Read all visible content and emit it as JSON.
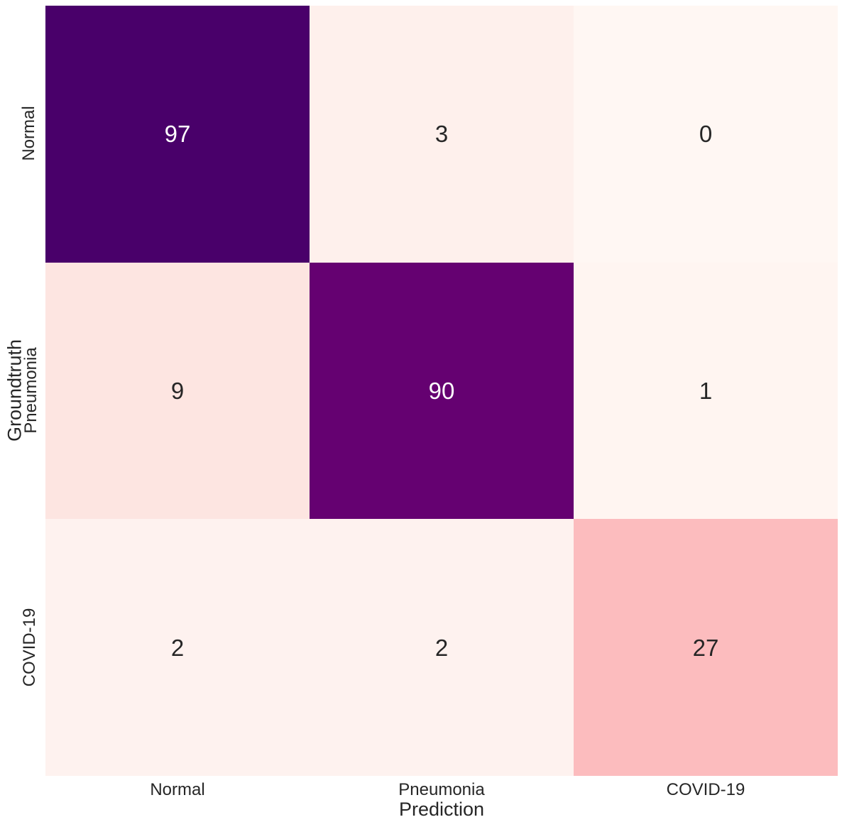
{
  "chart_data": {
    "type": "heatmap",
    "subtype": "confusion-matrix",
    "xlabel": "Prediction",
    "ylabel": "Groundtruth",
    "x_categories": [
      "Normal",
      "Pneumonia",
      "COVID-19"
    ],
    "y_categories": [
      "Normal",
      "Pneumonia",
      "COVID-19"
    ],
    "values": [
      [
        97,
        3,
        0
      ],
      [
        9,
        90,
        1
      ],
      [
        2,
        2,
        27
      ]
    ],
    "vmin": 0,
    "vmax": 97,
    "colormap": "RdPu",
    "colorbar_shown": false,
    "grid": false,
    "cell_colors": [
      [
        "#49006A",
        "#FEF0EC",
        "#FFF7F3"
      ],
      [
        "#FDE5E1",
        "#650171",
        "#FFF5F1"
      ],
      [
        "#FEF2EF",
        "#FEF2EF",
        "#FCBCBE"
      ]
    ],
    "text_colors": [
      [
        "#FFFFFF",
        "#262626",
        "#262626"
      ],
      [
        "#262626",
        "#FFFFFF",
        "#262626"
      ],
      [
        "#262626",
        "#262626",
        "#262626"
      ]
    ]
  },
  "colors": {
    "background": "#FFFFFF",
    "label_text": "#262626"
  }
}
